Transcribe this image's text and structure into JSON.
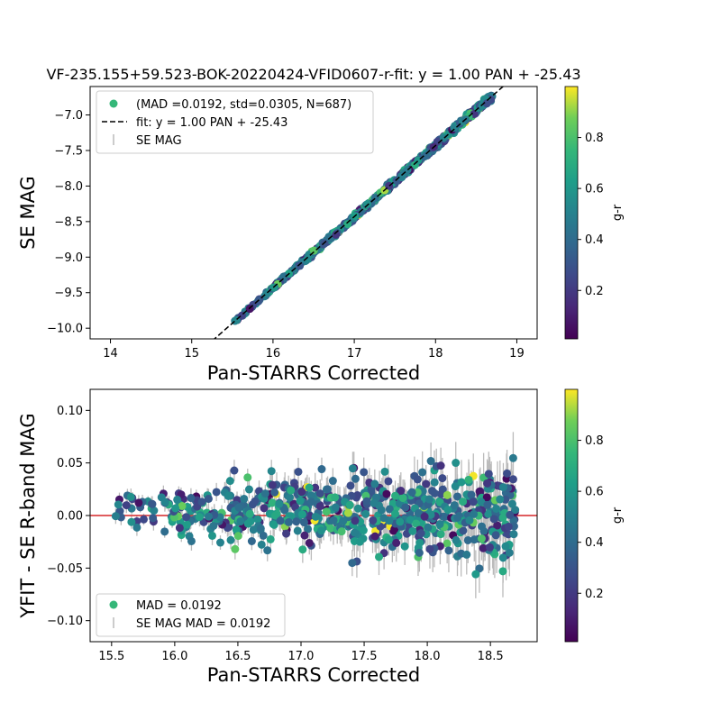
{
  "chart_data": [
    {
      "type": "scatter",
      "title": "VF-235.155+59.523-BOK-20220424-VFID0607-r-fit: y = 1.00 PAN + -25.43",
      "xlabel": "Pan-STARRS Corrected",
      "ylabel": "SE MAG",
      "xlim": [
        13.75,
        19.25
      ],
      "ylim": [
        -10.15,
        -6.6
      ],
      "x_ticks": [
        14,
        15,
        16,
        17,
        18,
        19
      ],
      "y_ticks": [
        -10.0,
        -9.5,
        -9.0,
        -8.5,
        -8.0,
        -7.5,
        -7.0
      ],
      "grid": false,
      "legend_position": "top-left",
      "legend": [
        {
          "label": "(MAD =0.0192, std=0.0305, N=687)",
          "kind": "marker"
        },
        {
          "label": "fit: y = 1.00 PAN + -25.43",
          "kind": "dashed-line"
        },
        {
          "label": "SE MAG",
          "kind": "errorbar"
        }
      ],
      "fit": {
        "slope": 1.0,
        "intercept": -25.43
      },
      "x_range": [
        15.45,
        18.7
      ],
      "n_points": 687,
      "colorbar": {
        "label": "g-r",
        "range": [
          0.01,
          1.0
        ],
        "ticks": [
          0.2,
          0.4,
          0.6,
          0.8
        ],
        "colormap": "viridis"
      }
    },
    {
      "type": "scatter",
      "xlabel": "Pan-STARRS Corrected",
      "ylabel": "YFIT - SE R-band MAG",
      "xlim": [
        15.33,
        18.87
      ],
      "ylim": [
        -0.12,
        0.12
      ],
      "x_ticks": [
        15.5,
        16.0,
        16.5,
        17.0,
        17.5,
        18.0,
        18.5
      ],
      "y_ticks": [
        -0.1,
        -0.05,
        0.0,
        0.05,
        0.1
      ],
      "grid": false,
      "legend_position": "bottom-left",
      "legend": [
        {
          "label": "MAD = 0.0192",
          "kind": "marker"
        },
        {
          "label": "SE MAG MAD = 0.0192",
          "kind": "errorbar"
        }
      ],
      "reference_line": {
        "y": 0.0,
        "color": "#d62728"
      },
      "x_range": [
        15.45,
        18.7
      ],
      "n_points": 687,
      "colorbar": {
        "label": "g-r",
        "range": [
          0.01,
          1.0
        ],
        "ticks": [
          0.2,
          0.4,
          0.6,
          0.8
        ],
        "colormap": "viridis"
      }
    }
  ]
}
